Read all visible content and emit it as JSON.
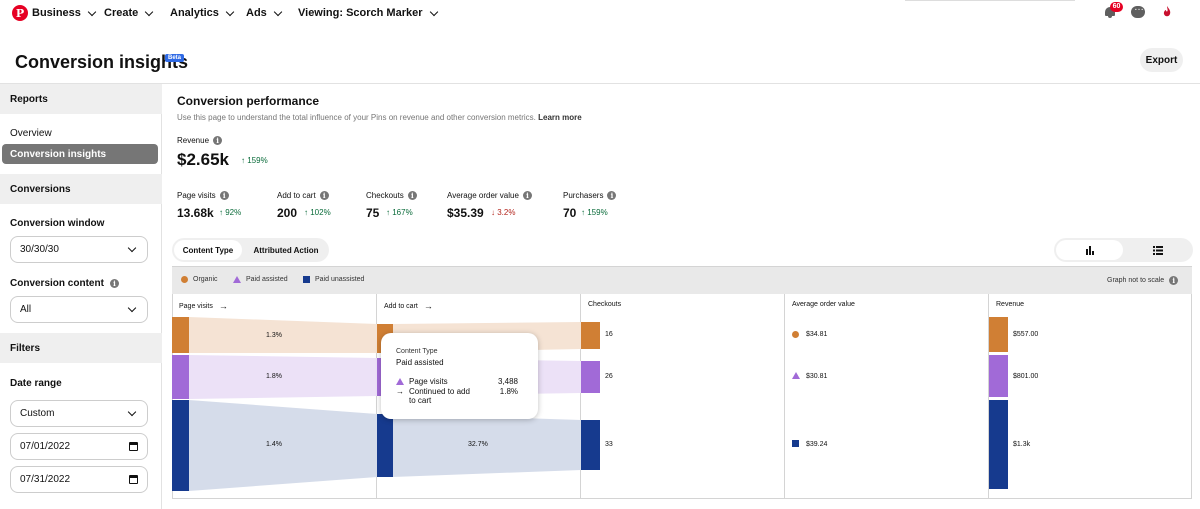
{
  "nav": {
    "logo": "P",
    "items": [
      "Business",
      "Create",
      "Analytics",
      "Ads",
      "Viewing: Scorch Marker"
    ],
    "notification_count": "60"
  },
  "header": {
    "title": "Conversion insights",
    "beta": "Beta",
    "export": "Export"
  },
  "sidebar": {
    "reports": "Reports",
    "overview": "Overview",
    "conversion_insights": "Conversion insights",
    "conversions": "Conversions",
    "conversion_window_label": "Conversion window",
    "conversion_window_value": "30/30/30",
    "conversion_content_label": "Conversion content",
    "conversion_content_value": "All",
    "filters": "Filters",
    "date_range_label": "Date range",
    "date_range_value": "Custom",
    "start_date": "07/01/2022",
    "end_date": "07/31/2022"
  },
  "main": {
    "title": "Conversion performance",
    "subtitle": "Use this page to understand the total influence of your Pins on revenue and other conversion metrics.",
    "learn_more": "Learn more",
    "revenue_label": "Revenue",
    "revenue_value": "$2.65k",
    "revenue_delta": "159%",
    "metrics": [
      {
        "label": "Page visits",
        "value": "13.68k",
        "delta": "92%",
        "dir": "up"
      },
      {
        "label": "Add to cart",
        "value": "200",
        "delta": "102%",
        "dir": "up"
      },
      {
        "label": "Checkouts",
        "value": "75",
        "delta": "167%",
        "dir": "up"
      },
      {
        "label": "Average order value",
        "value": "$35.39",
        "delta": "3.2%",
        "dir": "down"
      },
      {
        "label": "Purchasers",
        "value": "70",
        "delta": "159%",
        "dir": "up"
      }
    ],
    "toggle": [
      "Content Type",
      "Attributed Action"
    ]
  },
  "legend": {
    "organic": "Organic",
    "paid_assisted": "Paid assisted",
    "paid_unassisted": "Paid unassisted",
    "scale_note": "Graph not to scale",
    "colors": {
      "organic": "#d07f34",
      "paid_assisted": "#a16ad7",
      "paid_unassisted": "#163a8e"
    }
  },
  "chart_data": {
    "type": "table",
    "columns": [
      "Page visits",
      "Add to cart",
      "Checkouts",
      "Average order value",
      "Revenue"
    ],
    "series": [
      {
        "name": "Organic",
        "page_to_cart_rate": "1.3%",
        "checkouts": "16",
        "average_order_value": "$34.81",
        "revenue": "$557.00"
      },
      {
        "name": "Paid assisted",
        "page_to_cart_rate": "1.8%",
        "checkouts": "26",
        "average_order_value": "$30.81",
        "revenue": "$801.00"
      },
      {
        "name": "Paid unassisted",
        "page_to_cart_rate": "1.4%",
        "cart_to_checkout_rate": "32.7%",
        "checkouts": "33",
        "average_order_value": "$39.24",
        "revenue": "$1.3k"
      }
    ]
  },
  "tooltip": {
    "caption": "Content Type",
    "title": "Paid assisted",
    "row1_label": "Page visits",
    "row1_value": "3,488",
    "row2_label": "Continued to add to cart",
    "row2_value": "1.8%"
  }
}
